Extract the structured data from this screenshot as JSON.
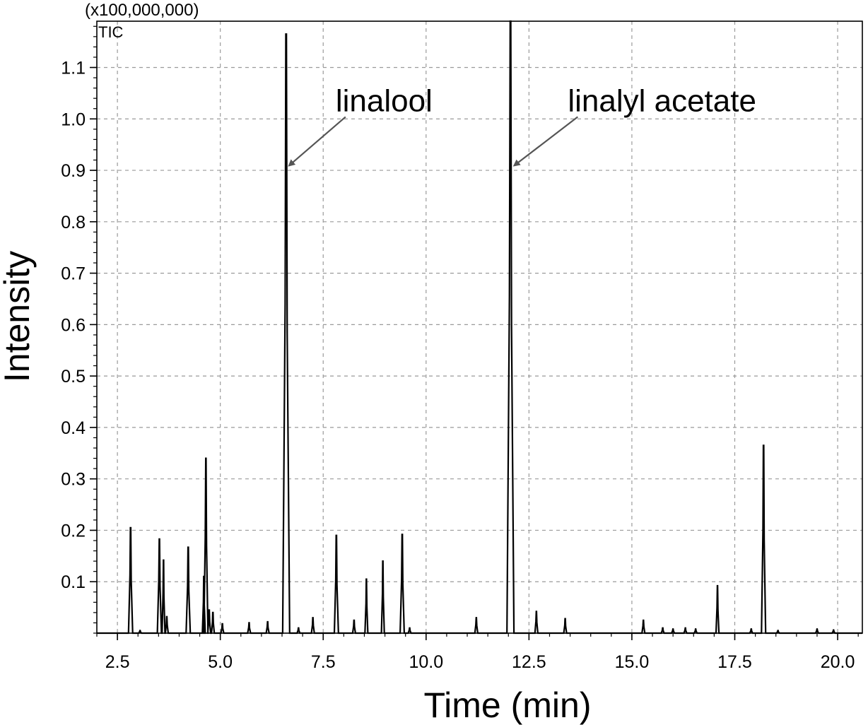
{
  "chart_data": {
    "type": "line",
    "title": "",
    "trace_label": "TIC",
    "scale_label": "(x100,000,000)",
    "xlabel": "Time (min)",
    "ylabel": "Intensity",
    "xlim": [
      2.0,
      20.6
    ],
    "ylim": [
      0.0,
      1.19
    ],
    "x_ticks": [
      2.5,
      5.0,
      7.5,
      10.0,
      12.5,
      15.0,
      17.5,
      20.0
    ],
    "x_tick_labels": [
      "2.5",
      "5.0",
      "7.5",
      "10.0",
      "12.5",
      "15.0",
      "17.5",
      "20.0"
    ],
    "y_ticks": [
      0.1,
      0.2,
      0.3,
      0.4,
      0.5,
      0.6,
      0.7,
      0.8,
      0.9,
      1.0,
      1.1
    ],
    "y_tick_labels": [
      "0.1",
      "0.2",
      "0.3",
      "0.4",
      "0.5",
      "0.6",
      "0.7",
      "0.8",
      "0.9",
      "1.0",
      "1.1"
    ],
    "grid": true,
    "series": [
      {
        "peaks": [
          [
            2.82,
            0.205
          ],
          [
            3.05,
            0.005
          ],
          [
            3.52,
            0.183
          ],
          [
            3.62,
            0.142
          ],
          [
            3.7,
            0.032
          ],
          [
            4.22,
            0.167
          ],
          [
            4.6,
            0.11
          ],
          [
            4.65,
            0.34
          ],
          [
            4.73,
            0.045
          ],
          [
            4.82,
            0.04
          ],
          [
            5.05,
            0.018
          ],
          [
            5.7,
            0.02
          ],
          [
            6.15,
            0.022
          ],
          [
            6.6,
            1.165
          ],
          [
            6.9,
            0.01
          ],
          [
            7.25,
            0.03
          ],
          [
            7.82,
            0.19
          ],
          [
            8.25,
            0.025
          ],
          [
            8.55,
            0.105
          ],
          [
            8.95,
            0.14
          ],
          [
            9.42,
            0.192
          ],
          [
            9.6,
            0.01
          ],
          [
            11.22,
            0.03
          ],
          [
            12.05,
            1.19
          ],
          [
            12.68,
            0.042
          ],
          [
            13.38,
            0.028
          ],
          [
            15.28,
            0.025
          ],
          [
            15.75,
            0.01
          ],
          [
            16.0,
            0.008
          ],
          [
            16.3,
            0.01
          ],
          [
            16.55,
            0.008
          ],
          [
            17.08,
            0.092
          ],
          [
            17.9,
            0.008
          ],
          [
            18.2,
            0.365
          ],
          [
            18.55,
            0.005
          ],
          [
            19.5,
            0.008
          ],
          [
            19.9,
            0.006
          ]
        ]
      }
    ],
    "annotations": [
      {
        "text": "linalool",
        "x": 6.6,
        "y": 0.905
      },
      {
        "text": "linalyl acetate",
        "x": 12.07,
        "y": 0.905
      }
    ]
  }
}
